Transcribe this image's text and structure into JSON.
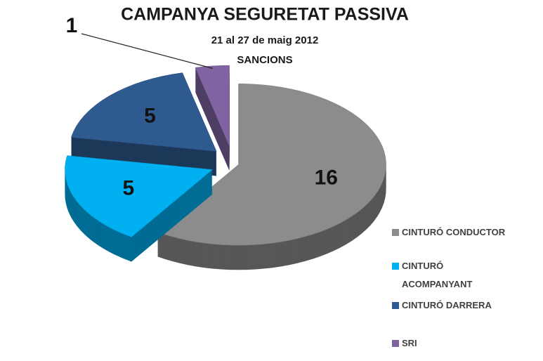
{
  "chart_data": {
    "type": "pie",
    "title": "CAMPANYA SEGURETAT PASSIVA",
    "subtitle_lines": [
      "21 al 27 de maig 2012",
      "SANCIONS"
    ],
    "categories": [
      "CINTURÓ CONDUCTOR",
      "CINTURÓ ACOMPANYANT",
      "CINTURÓ DARRERA",
      "SRI"
    ],
    "values": [
      16,
      5,
      5,
      1
    ],
    "colors": [
      "#8c8c8c",
      "#00b0f0",
      "#2f5a8f",
      "#8064a2"
    ],
    "legend": "right"
  }
}
